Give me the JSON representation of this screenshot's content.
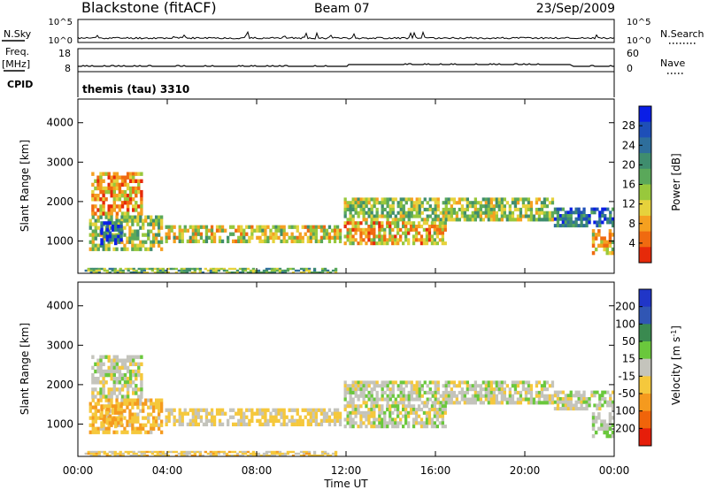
{
  "header": {
    "station": "Blackstone (fitACF)",
    "beam": "Beam 07",
    "date": "23/Sep/2009"
  },
  "strips": {
    "nsky_label": "N.Sky",
    "nsky_ticks": [
      "10^5",
      "10^0"
    ],
    "nsearch_label": "N.Search",
    "nsearch_ticks": [
      "10^5",
      "10^0"
    ],
    "freq_label": "Freq.",
    "freq_unit": "[MHz]",
    "freq_ticks": [
      "18",
      "8"
    ],
    "nave_label": "Nave",
    "nave_ticks": [
      "60",
      "0"
    ],
    "cpid_label": "CPID",
    "cpid_text": "themis (tau) 3310"
  },
  "chart_data": [
    {
      "type": "heatmap",
      "name": "power",
      "ylabel": "Slant Range [km]",
      "xlabel": "",
      "ylim": [
        180,
        4600
      ],
      "xlim": [
        "00:00",
        "24:00"
      ],
      "yticks": [
        1000,
        2000,
        3000,
        4000
      ],
      "colorbar": {
        "label": "Power [dB]",
        "ticks": [
          "28",
          "24",
          "20",
          "16",
          "12",
          "8",
          "4"
        ],
        "colors": [
          "#0a1ee6",
          "#1e4fb8",
          "#2e6e9c",
          "#3f8d6e",
          "#5aa85a",
          "#98c83c",
          "#e6d23c",
          "#f5a020",
          "#f06a10",
          "#e62a0a"
        ],
        "range": [
          0,
          30
        ]
      },
      "regions": [
        {
          "t": [
            0.6,
            2.9
          ],
          "r": [
            1650,
            2750
          ],
          "v": 8
        },
        {
          "t": [
            0.5,
            3.8
          ],
          "r": [
            750,
            1650
          ],
          "v": 14
        },
        {
          "t": [
            1.0,
            2.0
          ],
          "r": [
            900,
            1500
          ],
          "v": 24
        },
        {
          "t": [
            3.9,
            11.8
          ],
          "r": [
            950,
            1400
          ],
          "v": 12
        },
        {
          "t": [
            0.3,
            11.6
          ],
          "r": [
            180,
            320
          ],
          "v": 16
        },
        {
          "t": [
            11.9,
            21.3
          ],
          "r": [
            1500,
            2100
          ],
          "v": 14
        },
        {
          "t": [
            11.9,
            16.5
          ],
          "r": [
            900,
            1500
          ],
          "v": 9
        },
        {
          "t": [
            21.3,
            24.0
          ],
          "r": [
            1350,
            1850
          ],
          "v": 22
        },
        {
          "t": [
            23.0,
            24.0
          ],
          "r": [
            650,
            1300
          ],
          "v": 10
        }
      ]
    },
    {
      "type": "heatmap",
      "name": "velocity",
      "ylabel": "Slant Range [km]",
      "xlabel": "Time UT",
      "ylim": [
        180,
        4600
      ],
      "xlim": [
        "00:00",
        "24:00"
      ],
      "yticks": [
        1000,
        2000,
        3000,
        4000
      ],
      "xticks": [
        "00:00",
        "04:00",
        "08:00",
        "12:00",
        "16:00",
        "20:00",
        "00:00"
      ],
      "colorbar": {
        "label": "Velocity [m s",
        "label_sup": "-1",
        "label_end": "]",
        "ticks": [
          "200",
          "100",
          "50",
          "15",
          "-15",
          "-50",
          "-100",
          "-200"
        ],
        "colors": [
          "#2036c8",
          "#3056b4",
          "#3a8a50",
          "#6ac83c",
          "#c4c4bc",
          "#f5c83c",
          "#f59a1e",
          "#f0640a",
          "#e61e0a"
        ],
        "range": [
          -225,
          225
        ]
      },
      "regions": [
        {
          "t": [
            0.6,
            2.9
          ],
          "r": [
            1650,
            2750
          ],
          "v": 0
        },
        {
          "t": [
            0.5,
            3.8
          ],
          "r": [
            750,
            1650
          ],
          "v": -60
        },
        {
          "t": [
            1.0,
            2.0
          ],
          "r": [
            900,
            1500
          ],
          "v": -80
        },
        {
          "t": [
            3.9,
            11.8
          ],
          "r": [
            950,
            1400
          ],
          "v": -30
        },
        {
          "t": [
            0.3,
            11.6
          ],
          "r": [
            180,
            320
          ],
          "v": -40
        },
        {
          "t": [
            11.9,
            21.3
          ],
          "r": [
            1500,
            2100
          ],
          "v": 0
        },
        {
          "t": [
            11.9,
            16.5
          ],
          "r": [
            900,
            1500
          ],
          "v": 0
        },
        {
          "t": [
            21.3,
            24.0
          ],
          "r": [
            1350,
            1850
          ],
          "v": 0
        },
        {
          "t": [
            23.0,
            24.0
          ],
          "r": [
            650,
            1300
          ],
          "v": 30
        }
      ]
    }
  ]
}
